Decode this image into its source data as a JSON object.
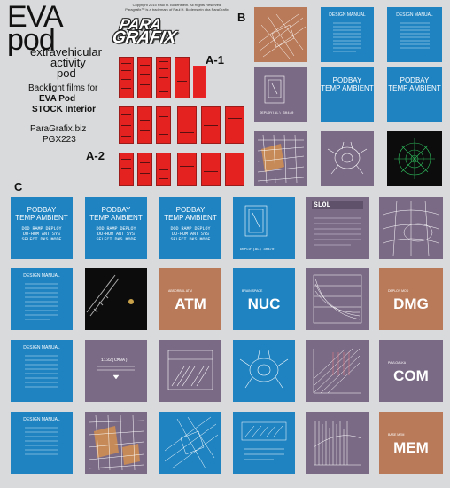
{
  "header": {
    "title_line1": "EVA",
    "title_line2": "pod",
    "subtitle_line1": "extravehicular",
    "subtitle_line2": "activity",
    "subtitle_line3": "pod",
    "desc_line1": "Backlight films for",
    "desc_line2": "EVA Pod",
    "desc_line3": "STOCK Interior",
    "website": "ParaGrafix.biz",
    "product_code": "PGX223",
    "copyright_line1": "Copyright 2015 Paul H. Bodenstein. All Rights Reserved.",
    "copyright_line2": "Paragrafix™ is a trademark of Paul H. Bodenstein dba ParaGrafix.",
    "logo_line1": "PARA",
    "logo_line2": "GRAFIX"
  },
  "sections": {
    "a1": "A-1",
    "a2": "A-2",
    "b": "B",
    "c": "C"
  },
  "tiles": {
    "podbay_line1": "PODBAY",
    "podbay_line2": "TEMP AMBIENT",
    "podbay_small1": "DOD RAMP DEPLOY",
    "podbay_small2": "DU-HUM ANT SYS",
    "podbay_small3": "SELECT DKS MODE",
    "design_manual": "DESIGN MANUAL",
    "deployal_label": "DEPLOY(AL) 304/0",
    "slol": "SLOL",
    "atm": "ATM",
    "nuc": "NUC",
    "dmg": "DMG",
    "com": "COM",
    "mem": "MEM",
    "atm_small": "ABSORBDL ATM",
    "nuc_small": "BRAIN SPACE",
    "dmg_small": "DEPLOY MOD",
    "com_small": "PAVLOALKA",
    "mem_small": "BASE MEM",
    "camera_label": "1132(CM0A)"
  },
  "colors": {
    "background": "#d9dadb",
    "red": "#e92327",
    "blue": "#1f83c1",
    "purple": "#7b6a86",
    "brown": "#b97a59",
    "black": "#0c0c0c"
  }
}
